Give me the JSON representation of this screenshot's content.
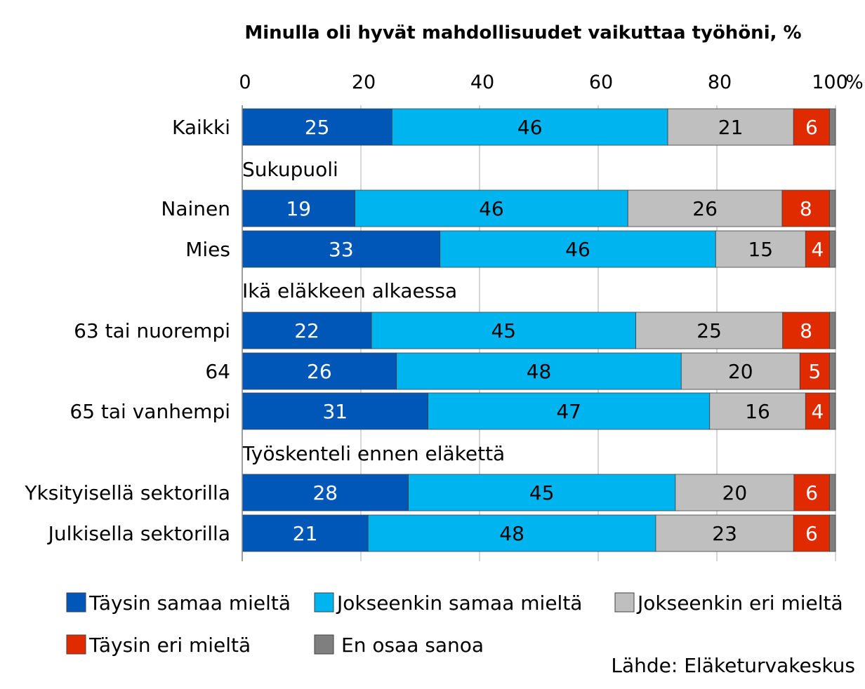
{
  "chart_data": {
    "type": "bar",
    "orientation": "horizontal",
    "stacked": true,
    "title": "Minulla oli hyvät mahdollisuudet vaikuttaa työhöni, %",
    "xlim": [
      0,
      100
    ],
    "x_ticks": [
      "0",
      "20",
      "40",
      "60",
      "80",
      "100"
    ],
    "x_unit": "%",
    "grid": "vertical",
    "legend_placement": "bottom",
    "source": "Lähde: Eläketurvakeskus",
    "rows": [
      {
        "kind": "bar",
        "label": "Kaikki"
      },
      {
        "kind": "group",
        "label": "Sukupuoli"
      },
      {
        "kind": "bar",
        "label": "Nainen"
      },
      {
        "kind": "bar",
        "label": "Mies"
      },
      {
        "kind": "group",
        "label": "Ikä eläkkeen alkaessa"
      },
      {
        "kind": "bar",
        "label": "63 tai nuorempi"
      },
      {
        "kind": "bar",
        "label": "64"
      },
      {
        "kind": "bar",
        "label": "65 tai vanhempi"
      },
      {
        "kind": "group",
        "label": "Työskenteli ennen eläkettä"
      },
      {
        "kind": "bar",
        "label": "Yksityisellä sektorilla"
      },
      {
        "kind": "bar",
        "label": "Julkisella sektorilla"
      }
    ],
    "categories": [
      "Kaikki",
      "Nainen",
      "Mies",
      "63 tai nuorempi",
      "64",
      "65 tai vanhempi",
      "Yksityisellä sektorilla",
      "Julkisella sektorilla"
    ],
    "series": [
      {
        "name": "Täysin samaa mieltä",
        "color": "#0057B8",
        "label_color": "#ffffff",
        "values": [
          25,
          19,
          33,
          22,
          26,
          31,
          28,
          21
        ],
        "labeled": true
      },
      {
        "name": "Jokseenkin samaa mieltä",
        "color": "#00B4F0",
        "label_color": "#000000",
        "values": [
          46,
          46,
          46,
          45,
          48,
          47,
          45,
          48
        ],
        "labeled": true
      },
      {
        "name": "Jokseenkin eri mieltä",
        "color": "#BFBFBF",
        "label_color": "#000000",
        "values": [
          21,
          26,
          15,
          25,
          20,
          16,
          20,
          23
        ],
        "labeled": true
      },
      {
        "name": "Täysin eri mieltä",
        "color": "#E02A00",
        "label_color": "#ffffff",
        "values": [
          6,
          8,
          4,
          8,
          5,
          4,
          6,
          6
        ],
        "labeled": true
      },
      {
        "name": "En osaa sanoa",
        "color": "#7F7F7F",
        "label_color": "#000000",
        "values": [
          1,
          1,
          1,
          1,
          1,
          1,
          1,
          1
        ],
        "labeled": false
      }
    ]
  }
}
